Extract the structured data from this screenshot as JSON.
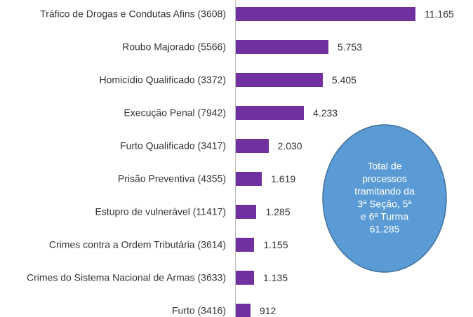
{
  "chart_data": {
    "type": "bar",
    "orientation": "horizontal",
    "categories": [
      "Tráfico de Drogas e Condutas Afins (3608)",
      "Roubo Majorado (5566)",
      "Homicídio Qualificado (3372)",
      "Execução Penal (7942)",
      "Furto Qualificado (3417)",
      "Prisão Preventiva (4355)",
      "Estupro de vulnerável (11417)",
      "Crimes contra a Ordem Tributária (3614)",
      "Crimes do Sistema Nacional de Armas (3633)",
      "Furto (3416)"
    ],
    "values": [
      11165,
      5753,
      5405,
      4233,
      2030,
      1619,
      1285,
      1155,
      1135,
      912
    ],
    "value_labels": [
      "11.165",
      "5.753",
      "5.405",
      "4.233",
      "2.030",
      "1.619",
      "1.285",
      "1.155",
      "1.135",
      "912"
    ],
    "color": "#7030a0",
    "annotation": {
      "lines": [
        "Total de",
        "processos",
        "tramitando da",
        "3ª Seção, 5ª",
        "e 6ª Turma",
        "61.285"
      ],
      "color": "#5b9bd5"
    }
  }
}
